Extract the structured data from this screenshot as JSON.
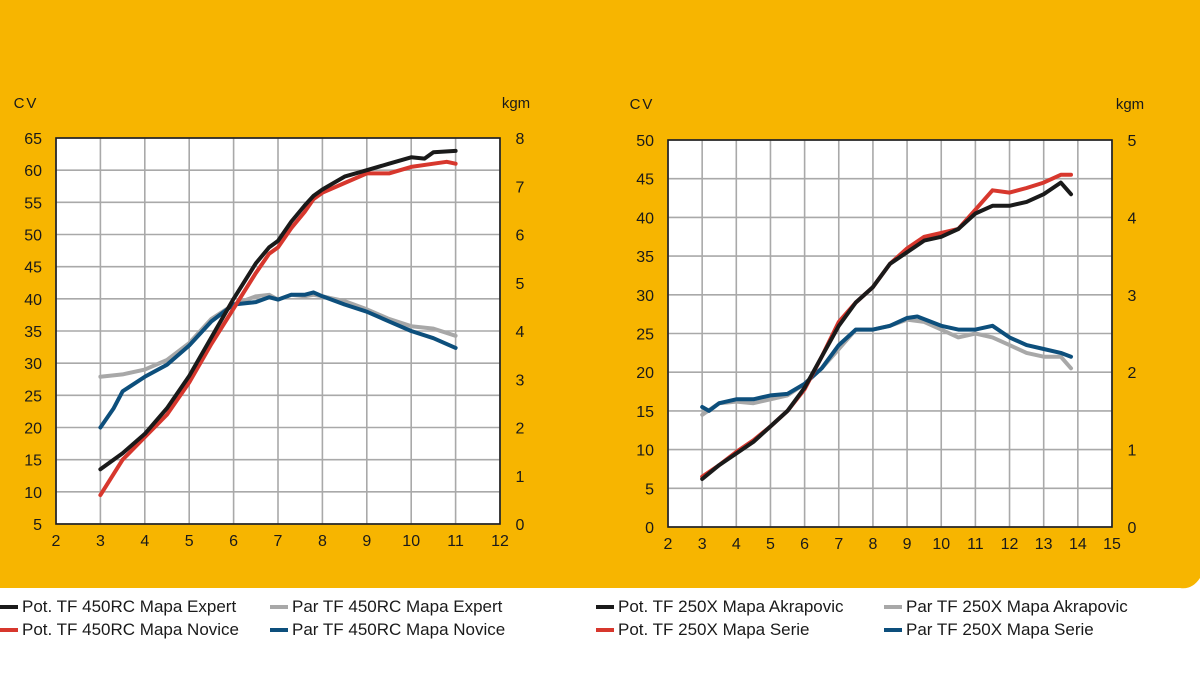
{
  "colors": {
    "background": "#F7B500",
    "plot_bg": "#ffffff",
    "grid": "#a9a9a9",
    "black": "#1a1a1a",
    "red": "#d7372d",
    "gray": "#a8a8a8",
    "blue": "#0d4f7c"
  },
  "chart_data": [
    {
      "type": "line",
      "title": "",
      "ylabel": "CV",
      "y2label": "kgm",
      "xlim": [
        2,
        12
      ],
      "ylim": [
        5,
        65
      ],
      "y2lim": [
        0,
        8
      ],
      "xticks": [
        "2",
        "3",
        "4",
        "5",
        "6",
        "7",
        "8",
        "9",
        "10",
        "11",
        "12"
      ],
      "yticks": [
        "5",
        "10",
        "15",
        "20",
        "25",
        "30",
        "35",
        "40",
        "45",
        "50",
        "55",
        "60",
        "65"
      ],
      "y2ticks": [
        "0",
        "1",
        "2",
        "3",
        "4",
        "5",
        "6",
        "7",
        "8"
      ],
      "series": [
        {
          "name": "Pot. TF 450RC Mapa Expert",
          "color": "black",
          "axis": "left",
          "x": [
            3,
            3.5,
            4,
            4.5,
            5,
            5.5,
            6,
            6.5,
            6.8,
            7,
            7.3,
            7.6,
            7.8,
            8,
            8.5,
            9,
            9.5,
            10,
            10.3,
            10.5,
            11
          ],
          "y": [
            13.5,
            16,
            19,
            23,
            28,
            34,
            40,
            45.5,
            48,
            49,
            52,
            54.5,
            56,
            57,
            59,
            60,
            61,
            62,
            61.8,
            62.8,
            63
          ]
        },
        {
          "name": "Pot. TF 450RC Mapa Novice",
          "color": "red",
          "axis": "left",
          "x": [
            3,
            3.5,
            4,
            4.5,
            5,
            5.5,
            6,
            6.5,
            6.8,
            7,
            7.3,
            7.6,
            7.8,
            8,
            8.5,
            9,
            9.5,
            10,
            10.5,
            10.8,
            11
          ],
          "y": [
            9.5,
            15,
            18.5,
            22,
            27,
            33,
            38.5,
            44,
            47,
            48,
            51,
            53.5,
            55.5,
            56.5,
            58,
            59.5,
            59.5,
            60.5,
            61,
            61.3,
            61
          ],
          "yExact": [
            9.5,
            15,
            18.5,
            22,
            27,
            33,
            38.5,
            44,
            47,
            48,
            51,
            53.5,
            55.5,
            56.5,
            58,
            59.5,
            59.5,
            60.5,
            61,
            61.3,
            61
          ]
        },
        {
          "name": "Par TF 450RC Mapa Expert",
          "color": "gray",
          "axis": "right",
          "x": [
            3,
            3.5,
            4,
            4.5,
            5,
            5.5,
            6,
            6.5,
            6.8,
            7,
            7.3,
            7.6,
            7.8,
            8,
            8.5,
            9,
            9.5,
            10,
            10.5,
            11
          ],
          "y": [
            3.05,
            3.1,
            3.2,
            3.4,
            3.75,
            4.25,
            4.55,
            4.72,
            4.75,
            4.65,
            4.75,
            4.72,
            4.75,
            4.72,
            4.62,
            4.45,
            4.25,
            4.1,
            4.05,
            3.9
          ]
        },
        {
          "name": "Par TF 450RC Mapa Novice",
          "color": "blue",
          "axis": "right",
          "x": [
            3,
            3.3,
            3.5,
            4,
            4.5,
            5,
            5.5,
            6,
            6.5,
            6.8,
            7,
            7.3,
            7.6,
            7.8,
            8,
            8.5,
            9,
            9.5,
            10,
            10.5,
            11
          ],
          "y": [
            2.0,
            2.4,
            2.75,
            3.05,
            3.3,
            3.7,
            4.2,
            4.55,
            4.6,
            4.7,
            4.65,
            4.75,
            4.75,
            4.8,
            4.72,
            4.55,
            4.4,
            4.2,
            4.0,
            3.85,
            3.65
          ]
        }
      ]
    },
    {
      "type": "line",
      "title": "",
      "ylabel": "CV",
      "y2label": "kgm",
      "xlim": [
        2,
        15
      ],
      "ylim": [
        0,
        50
      ],
      "y2lim": [
        0,
        5
      ],
      "xticks": [
        "2",
        "3",
        "4",
        "5",
        "6",
        "7",
        "8",
        "9",
        "10",
        "11",
        "12",
        "13",
        "14",
        "15"
      ],
      "yticks": [
        "0",
        "5",
        "10",
        "15",
        "20",
        "25",
        "30",
        "35",
        "40",
        "45",
        "50"
      ],
      "y2ticks": [
        "0",
        "1",
        "2",
        "3",
        "4",
        "5"
      ],
      "series": [
        {
          "name": "Pot. TF 250X Mapa Akrapovic",
          "color": "black",
          "axis": "left",
          "x": [
            3,
            3.5,
            4,
            4.5,
            5,
            5.5,
            6,
            6.5,
            7,
            7.5,
            8,
            8.5,
            9,
            9.5,
            10,
            10.5,
            11,
            11.5,
            12,
            12.5,
            13,
            13.5,
            13.8
          ],
          "y": [
            6.2,
            8,
            9.5,
            11,
            13,
            15,
            18,
            22,
            26,
            29,
            31,
            34,
            35.5,
            37,
            37.5,
            38.5,
            40.5,
            41.5,
            41.5,
            42,
            43,
            44.5,
            43
          ]
        },
        {
          "name": "Pot. TF 250X Mapa Serie",
          "color": "red",
          "axis": "left",
          "x": [
            3,
            3.5,
            4,
            4.5,
            5,
            5.5,
            6,
            6.5,
            7,
            7.5,
            8,
            8.5,
            9,
            9.5,
            10,
            10.5,
            11,
            11.5,
            12,
            12.5,
            13,
            13.5,
            13.8
          ],
          "y": [
            6.5,
            8,
            9.7,
            11.2,
            13,
            15,
            17.8,
            22,
            26.5,
            29,
            31,
            34,
            36,
            37.5,
            38,
            38.5,
            41,
            43.5,
            43.2,
            43.8,
            44.5,
            45.5,
            45.5
          ]
        },
        {
          "name": "Par TF 250X Mapa Akrapovic",
          "color": "gray",
          "axis": "right",
          "x": [
            3,
            3.5,
            4,
            4.5,
            5,
            5.5,
            6,
            6.5,
            7,
            7.5,
            8,
            8.5,
            9,
            9.5,
            10,
            10.5,
            11,
            11.5,
            12,
            12.5,
            13,
            13.5,
            13.8
          ],
          "y": [
            1.45,
            1.6,
            1.62,
            1.6,
            1.65,
            1.7,
            1.85,
            2.05,
            2.3,
            2.55,
            2.55,
            2.6,
            2.68,
            2.65,
            2.55,
            2.45,
            2.5,
            2.45,
            2.35,
            2.25,
            2.2,
            2.2,
            2.05
          ]
        },
        {
          "name": "Par TF 250X Mapa Serie",
          "color": "blue",
          "axis": "right",
          "x": [
            3,
            3.2,
            3.5,
            4,
            4.5,
            5,
            5.5,
            6,
            6.5,
            7,
            7.5,
            8,
            8.5,
            9,
            9.3,
            10,
            10.5,
            11,
            11.5,
            12,
            12.5,
            13,
            13.5,
            13.8
          ],
          "y": [
            1.55,
            1.5,
            1.6,
            1.65,
            1.65,
            1.7,
            1.72,
            1.85,
            2.05,
            2.35,
            2.55,
            2.55,
            2.6,
            2.7,
            2.72,
            2.6,
            2.55,
            2.55,
            2.6,
            2.45,
            2.35,
            2.3,
            2.25,
            2.2
          ]
        }
      ]
    }
  ],
  "legend": {
    "left": [
      {
        "label": "Pot. TF 450RC Mapa Expert",
        "color": "black"
      },
      {
        "label": "Par TF 450RC Mapa Expert",
        "color": "gray"
      },
      {
        "label": "Pot. TF 450RC Mapa Novice",
        "color": "red"
      },
      {
        "label": "Par TF 450RC Mapa Novice",
        "color": "blue"
      }
    ],
    "right": [
      {
        "label": "Pot. TF 250X Mapa Akrapovic",
        "color": "black"
      },
      {
        "label": "Par TF 250X Mapa Akrapovic",
        "color": "gray"
      },
      {
        "label": "Pot. TF 250X Mapa Serie",
        "color": "red"
      },
      {
        "label": "Par TF 250X Mapa Serie",
        "color": "blue"
      }
    ]
  }
}
